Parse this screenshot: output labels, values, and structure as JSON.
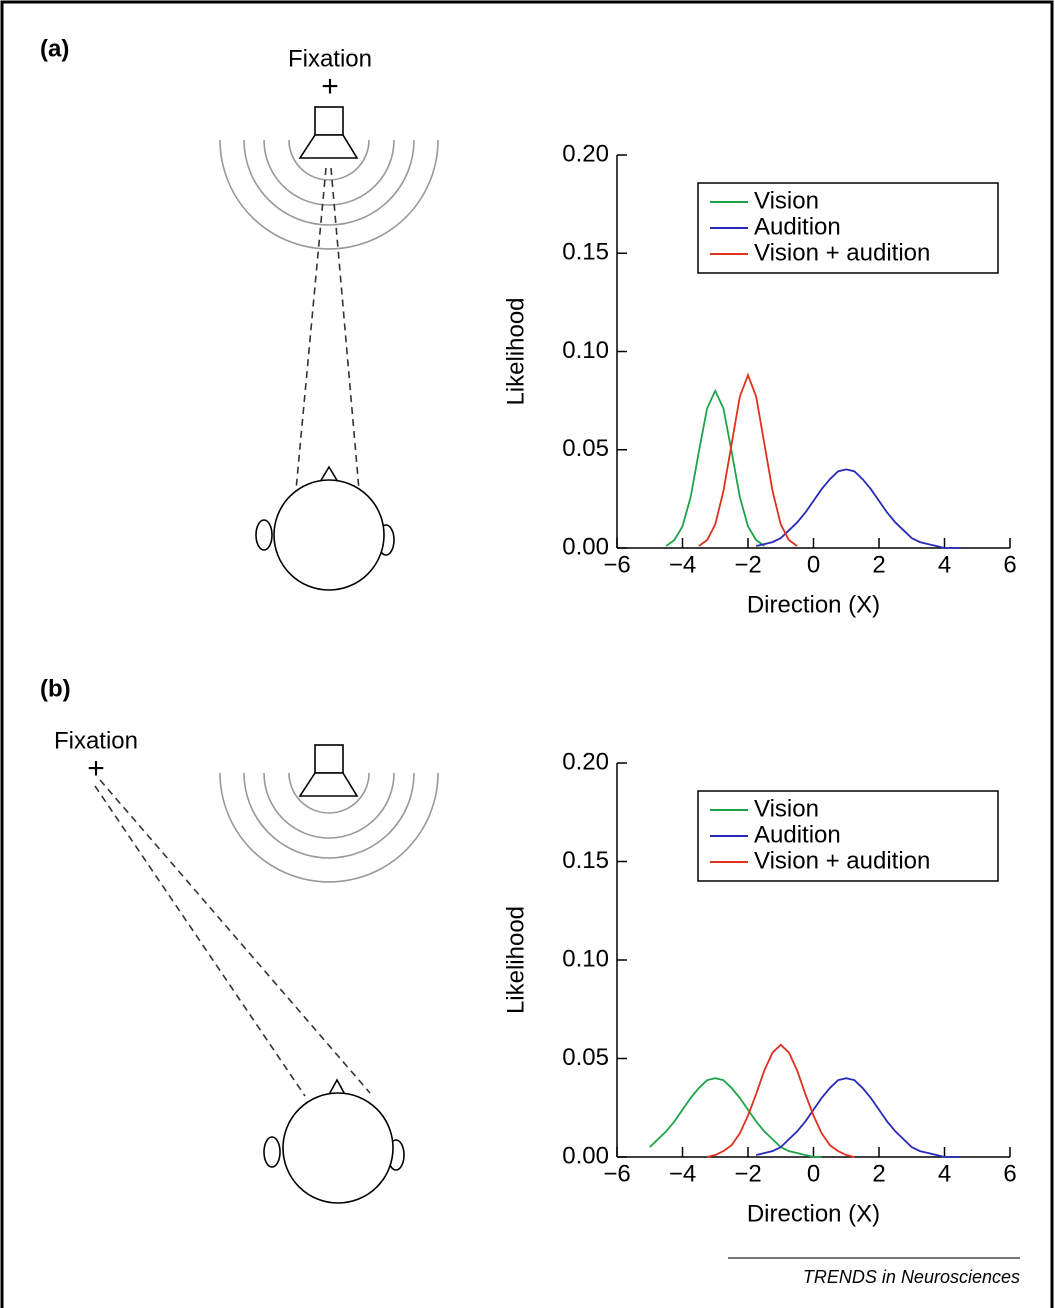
{
  "panels": [
    {
      "label": "(a)",
      "fixation": "Fixation",
      "cross": "+"
    },
    {
      "label": "(b)",
      "fixation": "Fixation",
      "cross": "+"
    }
  ],
  "footer": "TRENDS in Neurosciences",
  "chart_data": [
    {
      "type": "line",
      "x_label": "Direction (X)",
      "y_label": "Likelihood",
      "xlim": [
        -6,
        6
      ],
      "xticks": [
        {
          "value": -6,
          "label": "−6"
        },
        {
          "value": -4,
          "label": "−4"
        },
        {
          "value": -2,
          "label": "−2"
        },
        0,
        2,
        4,
        6
      ],
      "ylim": [
        0,
        0.2
      ],
      "yticks": [
        {
          "value": 0,
          "label": "0.00"
        },
        0.05,
        {
          "value": 0.1,
          "label": "0.10"
        },
        0.15,
        {
          "value": 0.2,
          "label": "0.20"
        }
      ],
      "legend": "top-right",
      "x": [
        -5,
        -4.75,
        -4.5,
        -4.25,
        -4,
        -3.75,
        -3.5,
        -3.25,
        -3,
        -2.75,
        -2.5,
        -2.25,
        -2,
        -1.75,
        -1.5,
        -1.25,
        -1,
        -0.75,
        -0.5,
        -0.25,
        0,
        0.25,
        0.5,
        0.75,
        1,
        1.25,
        1.5,
        1.75,
        2,
        2.25,
        2.5,
        2.75,
        3,
        3.25,
        3.5,
        3.75,
        4,
        4.25,
        4.5,
        4.75,
        5
      ],
      "series": [
        {
          "name": "Vision",
          "color": "#1fa34a",
          "values": [
            null,
            null,
            0.001,
            0.004,
            0.011,
            0.026,
            0.049,
            0.071,
            0.08,
            0.071,
            0.049,
            0.026,
            0.011,
            0.004,
            0.001,
            null,
            null,
            null,
            null,
            null,
            null,
            null,
            null,
            null,
            null,
            null,
            null,
            null,
            null,
            null,
            null,
            null,
            null,
            null,
            null,
            null,
            null,
            null,
            null,
            null,
            null
          ]
        },
        {
          "name": "Audition",
          "color": "#2a2ab8",
          "values": [
            null,
            null,
            null,
            null,
            null,
            null,
            null,
            null,
            null,
            null,
            null,
            null,
            null,
            0.001,
            0.002,
            0.003,
            0.005,
            0.009,
            0.013,
            0.018,
            0.024,
            0.03,
            0.035,
            0.039,
            0.04,
            0.039,
            0.035,
            0.03,
            0.024,
            0.018,
            0.013,
            0.009,
            0.005,
            0.003,
            0.002,
            0.001,
            0,
            0,
            0,
            null,
            null
          ]
        },
        {
          "name": "Vision + audition",
          "color": "#e0301e",
          "values": [
            null,
            null,
            null,
            null,
            null,
            null,
            0.001,
            0.004,
            0.012,
            0.029,
            0.053,
            0.077,
            0.088,
            0.077,
            0.053,
            0.029,
            0.012,
            0.004,
            0.001,
            null,
            null,
            null,
            null,
            null,
            null,
            null,
            null,
            null,
            null,
            null,
            null,
            null,
            null,
            null,
            null,
            null,
            null,
            null,
            null,
            null,
            null
          ]
        }
      ]
    },
    {
      "type": "line",
      "x_label": "Direction (X)",
      "y_label": "Likelihood",
      "xlim": [
        -6,
        6
      ],
      "xticks": [
        {
          "value": -6,
          "label": "−6"
        },
        {
          "value": -4,
          "label": "−4"
        },
        {
          "value": -2,
          "label": "−2"
        },
        0,
        2,
        4,
        6
      ],
      "ylim": [
        0,
        0.2
      ],
      "yticks": [
        {
          "value": 0,
          "label": "0.00"
        },
        0.05,
        {
          "value": 0.1,
          "label": "0.10"
        },
        0.15,
        {
          "value": 0.2,
          "label": "0.20"
        }
      ],
      "legend": "top-right",
      "x": [
        -5,
        -4.75,
        -4.5,
        -4.25,
        -4,
        -3.75,
        -3.5,
        -3.25,
        -3,
        -2.75,
        -2.5,
        -2.25,
        -2,
        -1.75,
        -1.5,
        -1.25,
        -1,
        -0.75,
        -0.5,
        -0.25,
        0,
        0.25,
        0.5,
        0.75,
        1,
        1.25,
        1.5,
        1.75,
        2,
        2.25,
        2.5,
        2.75,
        3,
        3.25,
        3.5,
        3.75,
        4,
        4.25,
        4.5,
        4.75,
        5
      ],
      "series": [
        {
          "name": "Vision",
          "color": "#1fa34a",
          "values": [
            0.005,
            0.009,
            0.013,
            0.018,
            0.024,
            0.03,
            0.035,
            0.039,
            0.04,
            0.039,
            0.035,
            0.03,
            0.024,
            0.018,
            0.013,
            0.009,
            0.005,
            0.003,
            0.002,
            0.001,
            0,
            0,
            null,
            null,
            null,
            null,
            null,
            null,
            null,
            null,
            null,
            null,
            null,
            null,
            null,
            null,
            null,
            null,
            null,
            null,
            null
          ]
        },
        {
          "name": "Audition",
          "color": "#2a2ab8",
          "values": [
            null,
            null,
            null,
            null,
            null,
            null,
            null,
            null,
            null,
            null,
            null,
            null,
            null,
            0.001,
            0.002,
            0.003,
            0.005,
            0.009,
            0.013,
            0.018,
            0.024,
            0.03,
            0.035,
            0.039,
            0.04,
            0.039,
            0.035,
            0.03,
            0.024,
            0.018,
            0.013,
            0.009,
            0.005,
            0.003,
            0.002,
            0.001,
            0,
            0,
            0,
            null,
            null
          ]
        },
        {
          "name": "Vision + audition",
          "color": "#e0301e",
          "values": [
            null,
            null,
            null,
            null,
            null,
            null,
            null,
            0,
            0.001,
            0.003,
            0.006,
            0.012,
            0.021,
            0.032,
            0.044,
            0.053,
            0.057,
            0.053,
            0.044,
            0.032,
            0.021,
            0.012,
            0.006,
            0.003,
            0.001,
            0,
            null,
            null,
            null,
            null,
            null,
            null,
            null,
            null,
            null,
            null,
            null,
            null,
            null,
            null,
            null
          ]
        }
      ]
    }
  ]
}
